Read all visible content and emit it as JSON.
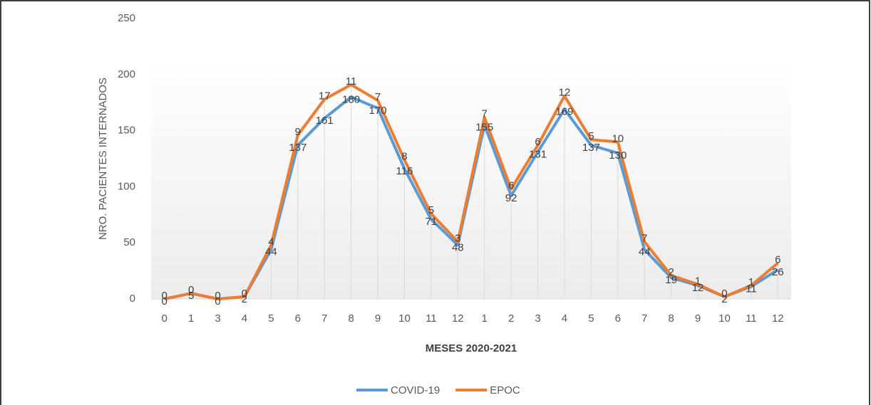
{
  "chart_data": {
    "type": "line",
    "stacked": true,
    "y_label": "NRO. PACIENTES INTERNADOS",
    "x_label": "MESES 2020-2021",
    "categories": [
      "0",
      "1",
      "3",
      "4",
      "5",
      "6",
      "7",
      "8",
      "9",
      "10",
      "11",
      "12",
      "1",
      "2",
      "3",
      "4",
      "5",
      "6",
      "7",
      "8",
      "9",
      "10",
      "11",
      "12"
    ],
    "series": [
      {
        "name": "COVID-19",
        "color": "#5b9bd5",
        "values": [
          0,
          5,
          0,
          2,
          44,
          137,
          161,
          180,
          170,
          116,
          71,
          48,
          155,
          92,
          131,
          169,
          137,
          130,
          44,
          19,
          12,
          2,
          11,
          26
        ]
      },
      {
        "name": "EPOC",
        "color": "#ed7d31",
        "values": [
          0,
          0,
          0,
          0,
          4,
          9,
          17,
          11,
          7,
          8,
          5,
          3,
          7,
          6,
          6,
          12,
          5,
          10,
          7,
          2,
          1,
          0,
          1,
          6
        ]
      }
    ],
    "ylim": [
      0,
      250
    ],
    "yticks": [
      0,
      50,
      100,
      150,
      200,
      250
    ],
    "legend": "bottom"
  }
}
